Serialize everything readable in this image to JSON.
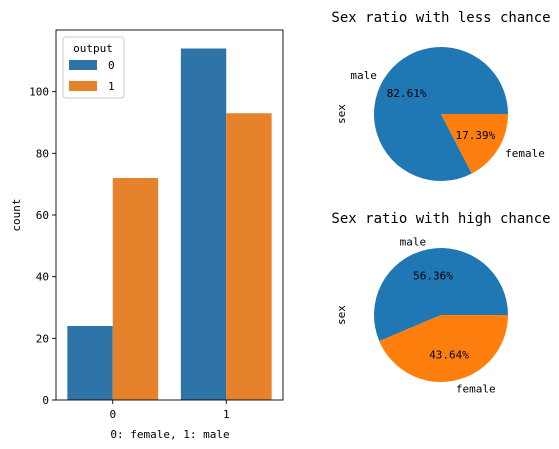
{
  "chart_data": [
    {
      "type": "bar",
      "categories": [
        "0",
        "1"
      ],
      "series": [
        {
          "name": "0",
          "values": [
            24,
            114
          ],
          "color": "#2f74a8"
        },
        {
          "name": "1",
          "values": [
            72,
            93
          ],
          "color": "#e6822c"
        }
      ],
      "xlabel": "0: female, 1: male",
      "ylabel": "count",
      "ylim": [
        0,
        120
      ],
      "yticks": [
        0,
        20,
        40,
        60,
        80,
        100
      ],
      "legend": {
        "title": "output",
        "placement": "top-left"
      },
      "grid": false
    },
    {
      "type": "pie",
      "title": "Sex ratio with less chance",
      "ylabel": "sex",
      "labels": [
        "male",
        "female"
      ],
      "values": [
        82.61,
        17.39
      ],
      "autopct": [
        "82.61%",
        "17.39%"
      ],
      "colors": [
        "#1f77b4",
        "#ff7f0e"
      ]
    },
    {
      "type": "pie",
      "title": "Sex ratio with high chance",
      "ylabel": "sex",
      "labels": [
        "male",
        "female"
      ],
      "values": [
        56.36,
        43.64
      ],
      "autopct": [
        "56.36%",
        "43.64%"
      ],
      "colors": [
        "#1f77b4",
        "#ff7f0e"
      ]
    }
  ]
}
